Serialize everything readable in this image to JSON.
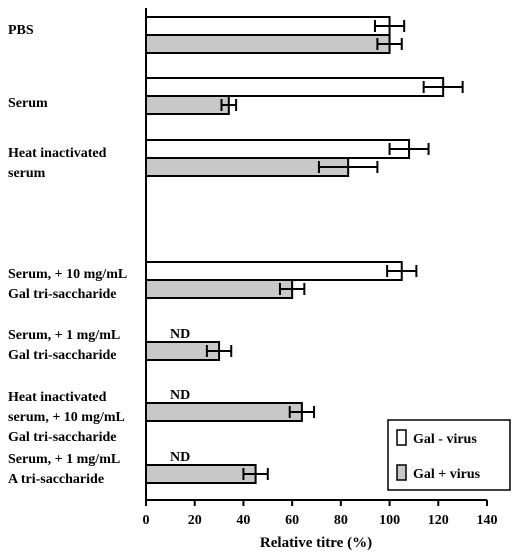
{
  "chart_data": {
    "type": "bar",
    "orientation": "horizontal",
    "title": "",
    "xlabel": "Relative titre (%)",
    "ylabel": "",
    "xlim": [
      0,
      140
    ],
    "x_ticks": [
      0,
      20,
      40,
      60,
      80,
      100,
      120,
      140
    ],
    "grid": false,
    "legend_position": "bottom-right",
    "categories": [
      {
        "lines": [
          "PBS"
        ],
        "gal_minus": 100,
        "gal_minus_err": 6,
        "gal_plus": 100,
        "gal_plus_err": 5
      },
      {
        "lines": [
          "Serum"
        ],
        "gal_minus": 122,
        "gal_minus_err": 8,
        "gal_plus": 34,
        "gal_plus_err": 3
      },
      {
        "lines": [
          "Heat inactivated",
          "serum"
        ],
        "gal_minus": 108,
        "gal_minus_err": 8,
        "gal_plus": 83,
        "gal_plus_err": 12
      },
      {
        "lines": [
          "Serum, + 10 mg/mL",
          "Gal tri-saccharide"
        ],
        "gal_minus": 105,
        "gal_minus_err": 6,
        "gal_plus": 60,
        "gal_plus_err": 5
      },
      {
        "lines": [
          "Serum, + 1 mg/mL",
          "Gal tri-saccharide"
        ],
        "gal_minus": null,
        "gal_minus_note": "ND",
        "gal_plus": 30,
        "gal_plus_err": 5
      },
      {
        "lines": [
          "Heat inactivated",
          "serum, + 10 mg/mL",
          "Gal tri-saccharide"
        ],
        "gal_minus": null,
        "gal_minus_note": "ND",
        "gal_plus": 64,
        "gal_plus_err": 5
      },
      {
        "lines": [
          "Serum, + 1 mg/mL",
          "A tri-saccharide"
        ],
        "gal_minus": null,
        "gal_minus_note": "ND",
        "gal_plus": 45,
        "gal_plus_err": 5
      }
    ],
    "series": [
      {
        "name": "Gal - virus",
        "key": "gal_minus",
        "color": "#ffffff"
      },
      {
        "name": "Gal + virus",
        "key": "gal_plus",
        "color": "#c8c8c8"
      }
    ]
  }
}
